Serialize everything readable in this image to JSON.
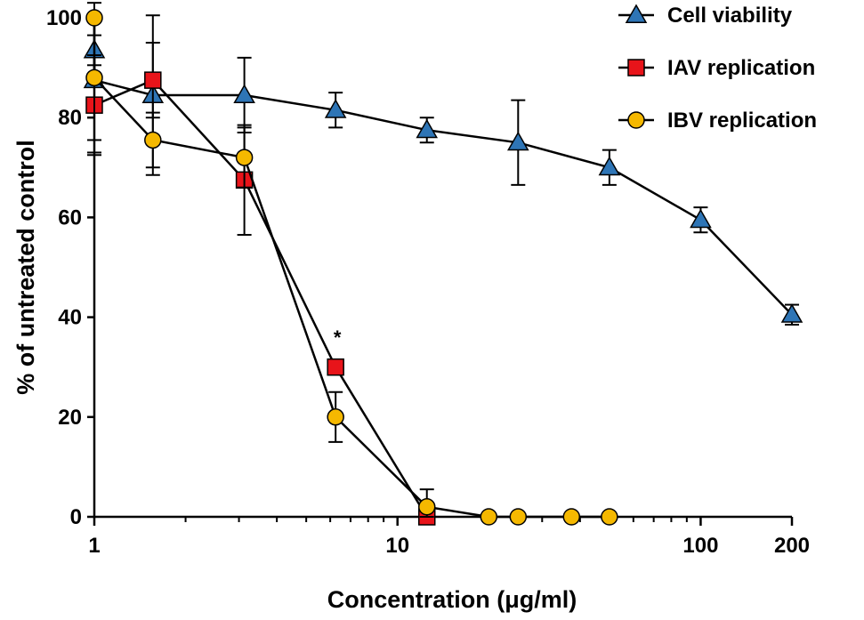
{
  "chart_data": {
    "type": "line",
    "title": "",
    "xlabel": "Concentration (μg/ml)",
    "ylabel": "% of untreated control",
    "xscale": "log",
    "xlim": [
      1,
      200
    ],
    "ylim": [
      0,
      100
    ],
    "xticks": [
      {
        "value": 1,
        "label": "1"
      },
      {
        "value": 10,
        "label": "10"
      },
      {
        "value": 100,
        "label": "100"
      },
      {
        "value": 200,
        "label": "200"
      }
    ],
    "yticks": [
      {
        "value": 0,
        "label": "0"
      },
      {
        "value": 20,
        "label": "20"
      },
      {
        "value": 40,
        "label": "40"
      },
      {
        "value": 60,
        "label": "60"
      },
      {
        "value": 80,
        "label": "80"
      },
      {
        "value": 100,
        "label": "100"
      }
    ],
    "legend_position": "top-right",
    "series": [
      {
        "name": "Cell viability",
        "marker": "triangle",
        "color": "#2e75b6",
        "points": [
          {
            "x": 1,
            "y": 93.5,
            "err": 3
          },
          {
            "x": 1,
            "y": 87.5,
            "err": 12
          },
          {
            "x": 1.56,
            "y": 84.5,
            "err": 16
          },
          {
            "x": 3.125,
            "y": 84.5,
            "err": 7.5
          },
          {
            "x": 6.25,
            "y": 81.5,
            "err": 3.5
          },
          {
            "x": 12.5,
            "y": 77.5,
            "err": 2.5
          },
          {
            "x": 25,
            "y": 75,
            "err": 8.5
          },
          {
            "x": 50,
            "y": 70,
            "err": 3.5
          },
          {
            "x": 100,
            "y": 59.5,
            "err": 2.5
          },
          {
            "x": 200,
            "y": 40.5,
            "err": 2
          }
        ]
      },
      {
        "name": "IAV replication",
        "marker": "square",
        "color": "#e8141a",
        "points": [
          {
            "x": 1,
            "y": 82.5,
            "err": 10
          },
          {
            "x": 1.56,
            "y": 87.5,
            "err": 7.5
          },
          {
            "x": 3.125,
            "y": 67.5,
            "err": 11
          },
          {
            "x": 6.25,
            "y": 30,
            "err": 0
          },
          {
            "x": 12.5,
            "y": 0,
            "err": 0
          }
        ]
      },
      {
        "name": "IBV replication",
        "marker": "circle",
        "color": "#f5b800",
        "points": [
          {
            "x": 1,
            "y": 100,
            "err": 0
          },
          {
            "x": 1,
            "y": 88,
            "err": 15
          },
          {
            "x": 1.56,
            "y": 75.5,
            "err": 5.5
          },
          {
            "x": 3.125,
            "y": 72,
            "err": 6
          },
          {
            "x": 6.25,
            "y": 20,
            "err": 5
          },
          {
            "x": 12.5,
            "y": 2,
            "err": 3.5
          },
          {
            "x": 20,
            "y": 0,
            "err": 0
          },
          {
            "x": 25,
            "y": 0,
            "err": 0
          },
          {
            "x": 37.5,
            "y": 0,
            "err": 0
          },
          {
            "x": 50,
            "y": 0,
            "err": 0
          }
        ]
      }
    ],
    "annotations": [
      {
        "text": "*",
        "x": 6.25,
        "y": 36
      }
    ]
  }
}
